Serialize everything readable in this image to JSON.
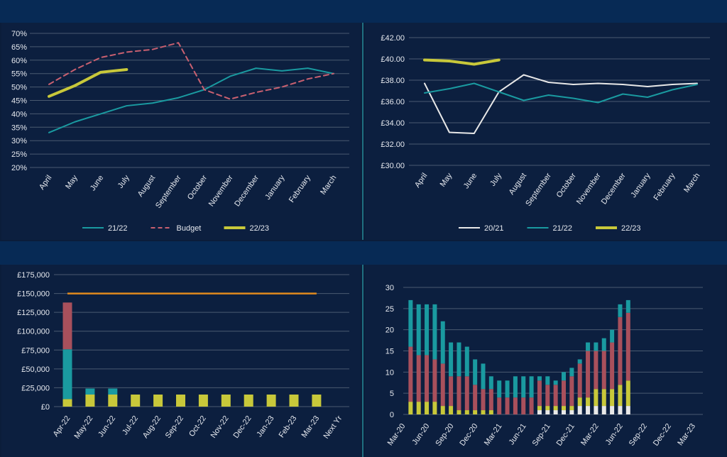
{
  "colors": {
    "background": "#0b1d3a",
    "band": "#072a55",
    "panel": "#0c1f3f",
    "grid": "#4a5a70",
    "text": "#e6e9ef",
    "teal": "#1a9aa0",
    "gold": "#c8c83a",
    "budget": "#c96070",
    "white": "#e8e8e8",
    "red": "#a8505c",
    "orange": "#e08a1e"
  },
  "chart_data": [
    {
      "type": "line",
      "categories": [
        "April",
        "May",
        "June",
        "July",
        "August",
        "September",
        "October",
        "November",
        "December",
        "January",
        "February",
        "March"
      ],
      "yticks": [
        "70%",
        "65%",
        "60%",
        "55%",
        "50%",
        "45%",
        "40%",
        "35%",
        "30%",
        "25%",
        "20%"
      ],
      "ylim": [
        20,
        70
      ],
      "grid": true,
      "legend_position": "bottom",
      "series": [
        {
          "name": "21/22",
          "color": "teal",
          "style": "solid",
          "values": [
            33,
            37,
            40,
            43,
            44,
            46,
            49,
            54,
            57,
            56,
            57,
            55
          ]
        },
        {
          "name": "Budget",
          "color": "budget",
          "style": "dashed",
          "values": [
            51,
            56.5,
            61,
            63,
            64,
            66.5,
            49,
            45.5,
            48,
            50,
            53,
            55
          ]
        },
        {
          "name": "22/23",
          "color": "gold",
          "style": "thick",
          "values": [
            46.5,
            50.5,
            55.5,
            56.5,
            null,
            null,
            null,
            null,
            null,
            null,
            null,
            null
          ]
        }
      ]
    },
    {
      "type": "line",
      "categories": [
        "April",
        "May",
        "June",
        "July",
        "August",
        "September",
        "October",
        "November",
        "December",
        "January",
        "February",
        "March"
      ],
      "yticks": [
        "£42.00",
        "£40.00",
        "£38.00",
        "£36.00",
        "£34.00",
        "£32.00",
        "£30.00"
      ],
      "ylim": [
        30,
        42
      ],
      "grid": true,
      "legend_position": "bottom",
      "series": [
        {
          "name": "20/21",
          "color": "white",
          "style": "solid",
          "values": [
            37.7,
            33.1,
            33.0,
            36.9,
            38.5,
            37.8,
            37.6,
            37.7,
            37.6,
            37.4,
            37.6,
            37.7
          ]
        },
        {
          "name": "21/22",
          "color": "teal",
          "style": "solid",
          "values": [
            36.8,
            37.2,
            37.7,
            36.9,
            36.1,
            36.6,
            36.3,
            35.9,
            36.7,
            36.4,
            37.1,
            37.6
          ]
        },
        {
          "name": "22/23",
          "color": "gold",
          "style": "thick",
          "values": [
            39.9,
            39.8,
            39.5,
            39.9,
            null,
            null,
            null,
            null,
            null,
            null,
            null,
            null
          ]
        }
      ]
    },
    {
      "type": "bar",
      "stacked": true,
      "categories": [
        "Apr-22",
        "May-22",
        "Jun-22",
        "Jul-22",
        "Aug-22",
        "Sep-22",
        "Oct-22",
        "Nov-22",
        "Dec-22",
        "Jan-23",
        "Feb-23",
        "Mar-23",
        "Next Yr"
      ],
      "yticks": [
        "£175,000",
        "£150,000",
        "£125,000",
        "£100,000",
        "£75,000",
        "£50,000",
        "£25,000",
        "£0"
      ],
      "ylim": [
        0,
        175000
      ],
      "grid": true,
      "stack_series": [
        {
          "color": "gold",
          "values": [
            10000,
            16000,
            16000,
            16000,
            16000,
            16000,
            16000,
            16000,
            16000,
            16000,
            16000,
            16000,
            0
          ]
        },
        {
          "color": "teal",
          "values": [
            66000,
            8000,
            8000,
            0,
            0,
            0,
            0,
            0,
            0,
            0,
            0,
            0,
            0
          ]
        },
        {
          "color": "red",
          "values": [
            62000,
            0,
            0,
            0,
            0,
            0,
            0,
            0,
            0,
            0,
            0,
            0,
            0
          ]
        }
      ],
      "reference_line": {
        "color": "orange",
        "value": 150000,
        "from_index": 0,
        "to_index": 11
      }
    },
    {
      "type": "bar",
      "stacked": true,
      "x_tick_labels": [
        "Mar-20",
        "Jun-20",
        "Sep-20",
        "Dec-20",
        "Mar-21",
        "Jun-21",
        "Sep-21",
        "Dec-21",
        "Mar-22",
        "Jun-22",
        "Sep-22",
        "Dec-22",
        "Mar-23"
      ],
      "yticks": [
        "30",
        "25",
        "20",
        "15",
        "10",
        "5",
        "0"
      ],
      "ylim": [
        0,
        30
      ],
      "grid": true,
      "periods": 37,
      "stack_colors": [
        "white",
        "gold",
        "red",
        "teal"
      ],
      "bars": [
        {
          "i": 1,
          "white": 0,
          "gold": 3,
          "red": 13,
          "teal": 11
        },
        {
          "i": 2,
          "white": 0,
          "gold": 3,
          "red": 11,
          "teal": 12
        },
        {
          "i": 3,
          "white": 0,
          "gold": 3,
          "red": 11,
          "teal": 12
        },
        {
          "i": 4,
          "white": 0,
          "gold": 3,
          "red": 10,
          "teal": 13
        },
        {
          "i": 5,
          "white": 0,
          "gold": 2,
          "red": 10,
          "teal": 10
        },
        {
          "i": 6,
          "white": 0,
          "gold": 2,
          "red": 7,
          "teal": 8
        },
        {
          "i": 7,
          "white": 0,
          "gold": 1,
          "red": 8,
          "teal": 8
        },
        {
          "i": 8,
          "white": 0,
          "gold": 1,
          "red": 8,
          "teal": 7
        },
        {
          "i": 9,
          "white": 0,
          "gold": 1,
          "red": 6,
          "teal": 6
        },
        {
          "i": 10,
          "white": 0,
          "gold": 1,
          "red": 5,
          "teal": 6
        },
        {
          "i": 11,
          "white": 0,
          "gold": 1,
          "red": 5,
          "teal": 3
        },
        {
          "i": 12,
          "white": 0,
          "gold": 0,
          "red": 4,
          "teal": 4
        },
        {
          "i": 13,
          "white": 0,
          "gold": 0,
          "red": 4,
          "teal": 4
        },
        {
          "i": 14,
          "white": 0,
          "gold": 0,
          "red": 4,
          "teal": 5
        },
        {
          "i": 15,
          "white": 0,
          "gold": 0,
          "red": 4,
          "teal": 5
        },
        {
          "i": 16,
          "white": 0,
          "gold": 0,
          "red": 4,
          "teal": 5
        },
        {
          "i": 17,
          "white": 1,
          "gold": 1,
          "red": 6,
          "teal": 1
        },
        {
          "i": 18,
          "white": 1,
          "gold": 1,
          "red": 5,
          "teal": 2
        },
        {
          "i": 19,
          "white": 1,
          "gold": 1,
          "red": 5,
          "teal": 1
        },
        {
          "i": 20,
          "white": 1,
          "gold": 1,
          "red": 6,
          "teal": 2
        },
        {
          "i": 21,
          "white": 1,
          "gold": 1,
          "red": 7,
          "teal": 2
        },
        {
          "i": 22,
          "white": 2,
          "gold": 2,
          "red": 8,
          "teal": 1
        },
        {
          "i": 23,
          "white": 2,
          "gold": 2,
          "red": 11,
          "teal": 2
        },
        {
          "i": 24,
          "white": 2,
          "gold": 4,
          "red": 9,
          "teal": 2
        },
        {
          "i": 25,
          "white": 2,
          "gold": 4,
          "red": 9,
          "teal": 3
        },
        {
          "i": 26,
          "white": 2,
          "gold": 4,
          "red": 11,
          "teal": 3
        },
        {
          "i": 27,
          "white": 2,
          "gold": 5,
          "red": 16,
          "teal": 3
        },
        {
          "i": 28,
          "white": 2,
          "gold": 6,
          "red": 16,
          "teal": 3
        }
      ]
    }
  ]
}
